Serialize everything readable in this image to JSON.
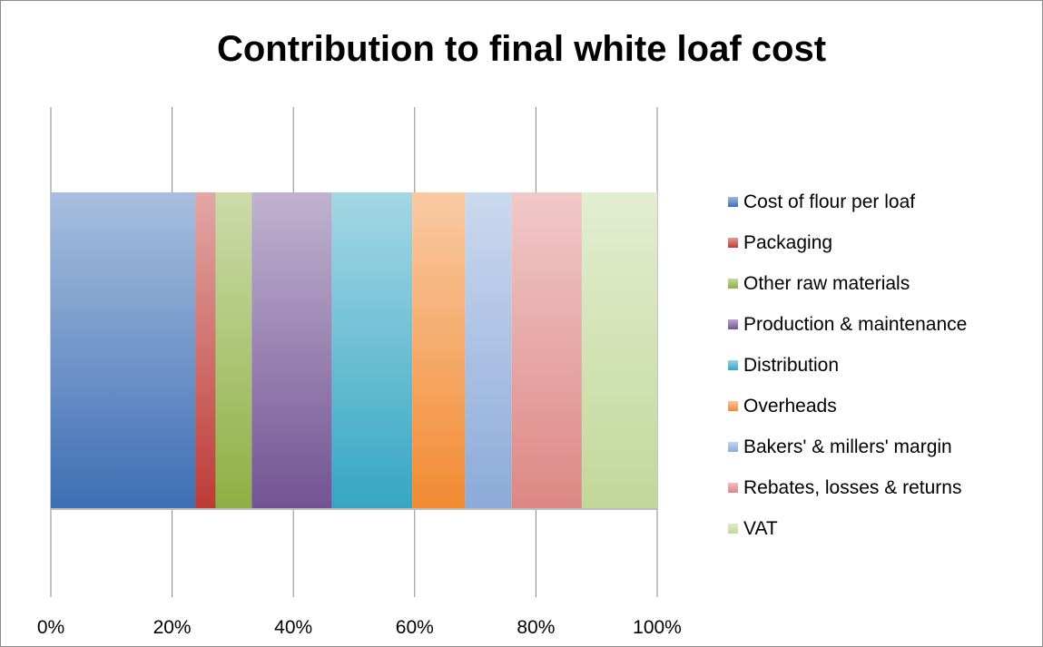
{
  "chart_data": {
    "type": "bar",
    "orientation": "horizontal",
    "stacked": "100%",
    "title": "Contribution to final white loaf cost",
    "xlabel": "",
    "ylabel": "",
    "xlim": [
      0,
      100
    ],
    "x_ticks": [
      "0%",
      "20%",
      "40%",
      "60%",
      "80%",
      "100%"
    ],
    "grid": true,
    "legend_position": "right",
    "series": [
      {
        "name": "Cost of flour per loaf",
        "value": 24.0,
        "color": "#3d6fb5"
      },
      {
        "name": "Packaging",
        "value": 3.3,
        "color": "#be3b37"
      },
      {
        "name": "Other raw materials",
        "value": 6.0,
        "color": "#8eb043"
      },
      {
        "name": "Production & maintenance",
        "value": 13.3,
        "color": "#735394"
      },
      {
        "name": "Distribution",
        "value": 13.3,
        "color": "#35a6c4"
      },
      {
        "name": "Overheads",
        "value": 8.8,
        "color": "#f28a32"
      },
      {
        "name": "Bakers' & millers' margin",
        "value": 7.7,
        "color": "#8caad9"
      },
      {
        "name": "Rebates, losses & returns",
        "value": 11.6,
        "color": "#dd8784"
      },
      {
        "name": "VAT",
        "value": 12.5,
        "color": "#c1d899"
      }
    ]
  }
}
